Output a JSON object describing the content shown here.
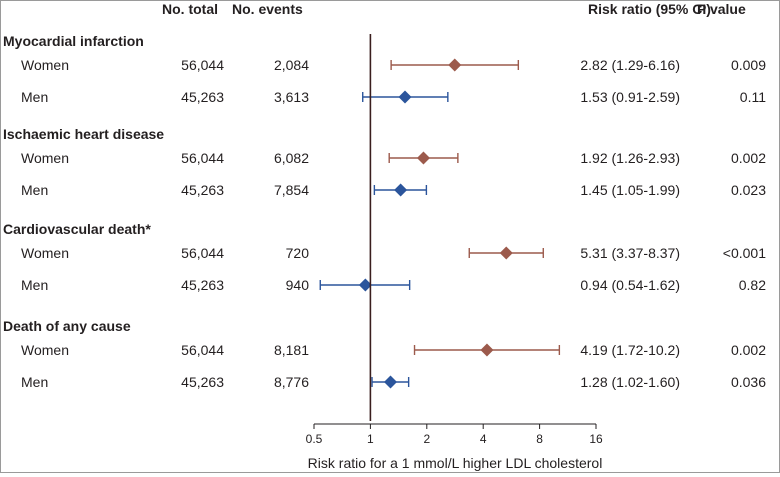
{
  "chart_data": {
    "type": "forest",
    "headers": {
      "total": "No. total",
      "events": "No. events",
      "rr": "Risk ratio (95% CI)",
      "p": "P value"
    },
    "groups": [
      {
        "title": "Myocardial infarction",
        "rows": [
          {
            "label": "Women",
            "total": "56,044",
            "events": "2,084",
            "rr_text": "2.82 (1.29-6.16)",
            "p": "0.009",
            "rr": 2.82,
            "lo": 1.29,
            "hi": 6.16,
            "sex": "women"
          },
          {
            "label": "Men",
            "total": "45,263",
            "events": "3,613",
            "rr_text": "1.53 (0.91-2.59)",
            "p": "0.11",
            "rr": 1.53,
            "lo": 0.91,
            "hi": 2.59,
            "sex": "men"
          }
        ]
      },
      {
        "title": "Ischaemic heart disease",
        "rows": [
          {
            "label": "Women",
            "total": "56,044",
            "events": "6,082",
            "rr_text": "1.92 (1.26-2.93)",
            "p": "0.002",
            "rr": 1.92,
            "lo": 1.26,
            "hi": 2.93,
            "sex": "women"
          },
          {
            "label": "Men",
            "total": "45,263",
            "events": "7,854",
            "rr_text": "1.45 (1.05-1.99)",
            "p": "0.023",
            "rr": 1.45,
            "lo": 1.05,
            "hi": 1.99,
            "sex": "men"
          }
        ]
      },
      {
        "title": "Cardiovascular death*",
        "rows": [
          {
            "label": "Women",
            "total": "56,044",
            "events": "720",
            "rr_text": "5.31 (3.37-8.37)",
            "p": "<0.001",
            "rr": 5.31,
            "lo": 3.37,
            "hi": 8.37,
            "sex": "women"
          },
          {
            "label": "Men",
            "total": "45,263",
            "events": "940",
            "rr_text": "0.94 (0.54-1.62)",
            "p": "0.82",
            "rr": 0.94,
            "lo": 0.54,
            "hi": 1.62,
            "sex": "men"
          }
        ]
      },
      {
        "title": "Death of any cause",
        "rows": [
          {
            "label": "Women",
            "total": "56,044",
            "events": "8,181",
            "rr_text": "4.19 (1.72-10.2)",
            "p": "0.002",
            "rr": 4.19,
            "lo": 1.72,
            "hi": 10.2,
            "sex": "women"
          },
          {
            "label": "Men",
            "total": "45,263",
            "events": "8,776",
            "rr_text": "1.28 (1.02-1.60)",
            "p": "0.036",
            "rr": 1.28,
            "lo": 1.02,
            "hi": 1.6,
            "sex": "men"
          }
        ]
      }
    ],
    "x_axis": {
      "scale": "log2",
      "ticks": [
        0.5,
        1,
        2,
        4,
        8,
        16
      ],
      "tick_labels": [
        "0.5",
        "1",
        "2",
        "4",
        "8",
        "16"
      ],
      "range": [
        0.5,
        16
      ],
      "reference": 1,
      "label": "Risk ratio for a 1 mmol/L higher LDL cholesterol"
    },
    "colors": {
      "women": "#9c5a4c",
      "men": "#2b559c",
      "reference": "#3a1e1e",
      "text": "#231f20"
    }
  }
}
